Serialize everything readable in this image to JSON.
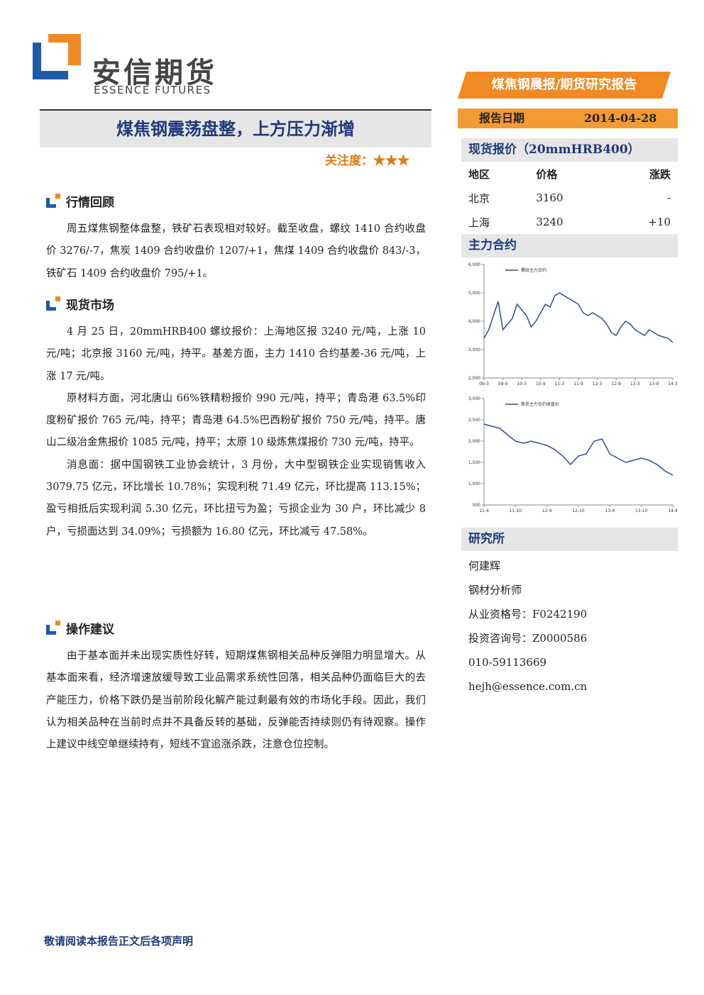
{
  "header": {
    "logo_cn": "安信期货",
    "logo_en": "ESSENCE FUTURES",
    "banner": "煤焦钢晨报/期货研究报告",
    "date_label": "报告日期",
    "date": "2014-04-28"
  },
  "title": "煤焦钢震荡盘整，上方压力渐增",
  "attention": "关注度：★★★",
  "sections": [
    {
      "heading": "行情回顾",
      "paragraphs": [
        "周五煤焦钢整体盘整，铁矿石表现相对较好。截至收盘，螺纹 1410 合约收盘价 3276/-7，焦炭 1409 合约收盘价 1207/+1，焦煤 1409 合约收盘价 843/-3，铁矿石 1409 合约收盘价 795/+1。"
      ]
    },
    {
      "heading": "现货市场",
      "paragraphs": [
        "4 月 25 日，20mmHRB400 螺纹报价：上海地区报 3240 元/吨，上涨 10 元/吨；北京报 3160 元/吨，持平。基差方面，主力 1410 合约基差-36 元/吨，上涨 17 元/吨。",
        "原材料方面，河北唐山 66%铁精粉报价 990 元/吨，持平；青岛港 63.5%印度粉矿报价 765 元/吨，持平；青岛港 64.5%巴西粉矿报价 750 元/吨，持平。唐山二级冶金焦报价 1085 元/吨，持平；太原 10 级炼焦煤报价 730 元/吨，持平。",
        "消息面：据中国钢铁工业协会统计，3 月份，大中型钢铁企业实现销售收入 3079.75 亿元，环比增长 10.78%；实现利税 71.49 亿元，环比提高 113.15%；盈亏相抵后实现利润 5.30 亿元，环比扭亏为盈；亏损企业为 30 户，环比减少 8 户，亏损面达到 34.09%；亏损额为 16.80 亿元，环比减亏 47.58%。"
      ]
    },
    {
      "heading": "操作建议",
      "paragraphs": [
        "由于基本面并未出现实质性好转，短期煤焦钢相关品种反弹阻力明显增大。从基本面来看，经济增速放缓导致工业品需求系统性回落，相关品种仍面临巨大的去产能压力，价格下跌仍是当前阶段化解产能过剩最有效的市场化手段。因此，我们认为相关品种在当前时点并不具备反转的基础，反弹能否持续则仍有待观察。操作上建议中线空单继续持有，短线不宜追涨杀跌，注意仓位控制。"
      ]
    }
  ],
  "sidebar": {
    "spot_heading": "现货报价（20mmHRB400）",
    "table": {
      "header": [
        "地区",
        "价格",
        "涨跌"
      ],
      "rows": [
        [
          "北京",
          "3160",
          "-"
        ],
        [
          "上海",
          "3240",
          "+10"
        ]
      ]
    },
    "contract_heading": "主力合约",
    "research_heading": "研究所",
    "contacts": [
      "何建辉",
      "钢材分析师",
      "从业资格号：F0242190",
      "投资咨询号：Z0000586",
      "010-59113669",
      "hejh@essence.com.cn"
    ]
  },
  "footer": "敬请阅读本报告正文后各项声明",
  "chart_data": [
    {
      "type": "line",
      "categories": [
        "09-3",
        null,
        null,
        null,
        "09-9",
        null,
        null,
        null,
        "10-3",
        null,
        null,
        null,
        "10-9",
        null,
        null,
        null,
        "11-3",
        null,
        null,
        null,
        "11-9",
        null,
        null,
        null,
        "12-3",
        null,
        null,
        null,
        "12-9",
        null,
        null,
        null,
        "13-3",
        null,
        null,
        null,
        "13-9",
        null,
        null,
        null,
        "14-3"
      ],
      "series": [
        {
          "name": "螺纹主力合约",
          "color": "#2e4f8a",
          "values": [
            3400,
            3700,
            4200,
            4700,
            3700,
            3900,
            4100,
            4600,
            4400,
            4200,
            3800,
            4000,
            4300,
            4600,
            4500,
            4900,
            5000,
            4900,
            4800,
            4700,
            4600,
            4300,
            4200,
            4300,
            4200,
            4100,
            3900,
            3600,
            3500,
            3800,
            4000,
            3900,
            3700,
            3600,
            3500,
            3700,
            3600,
            3500,
            3450,
            3400,
            3250
          ]
        }
      ],
      "ylim": [
        2000,
        6000
      ],
      "yticks": [
        {
          "value": 2000,
          "label": "2,000"
        },
        {
          "value": 3000,
          "label": "3,000"
        },
        {
          "value": 4000,
          "label": "4,000"
        },
        {
          "value": 5000,
          "label": "5,000"
        },
        {
          "value": 6000,
          "label": "6,000"
        }
      ]
    },
    {
      "type": "line",
      "categories": [
        "11-4",
        null,
        null,
        null,
        "11-10",
        null,
        null,
        null,
        "12-4",
        null,
        null,
        null,
        "12-10",
        null,
        null,
        null,
        "13-4",
        null,
        null,
        null,
        "13-10",
        null,
        null,
        null,
        "14-4"
      ],
      "series": [
        {
          "name": "焦炭主力合约收盘价",
          "color": "#2e4f8a",
          "values": [
            2400,
            2350,
            2300,
            2150,
            2000,
            1950,
            2000,
            1950,
            1900,
            1800,
            1650,
            1450,
            1650,
            1700,
            2000,
            2050,
            1700,
            1600,
            1500,
            1550,
            1600,
            1550,
            1450,
            1300,
            1200
          ]
        }
      ],
      "ylim": [
        500,
        3000
      ],
      "yticks": [
        500,
        {
          "value": 1000,
          "label": "1,000"
        },
        {
          "value": 1500,
          "label": "1,500"
        },
        {
          "value": 2000,
          "label": "2,000"
        },
        {
          "value": 2500,
          "label": "2,500"
        },
        {
          "value": 3000,
          "label": "3,000"
        }
      ]
    }
  ]
}
